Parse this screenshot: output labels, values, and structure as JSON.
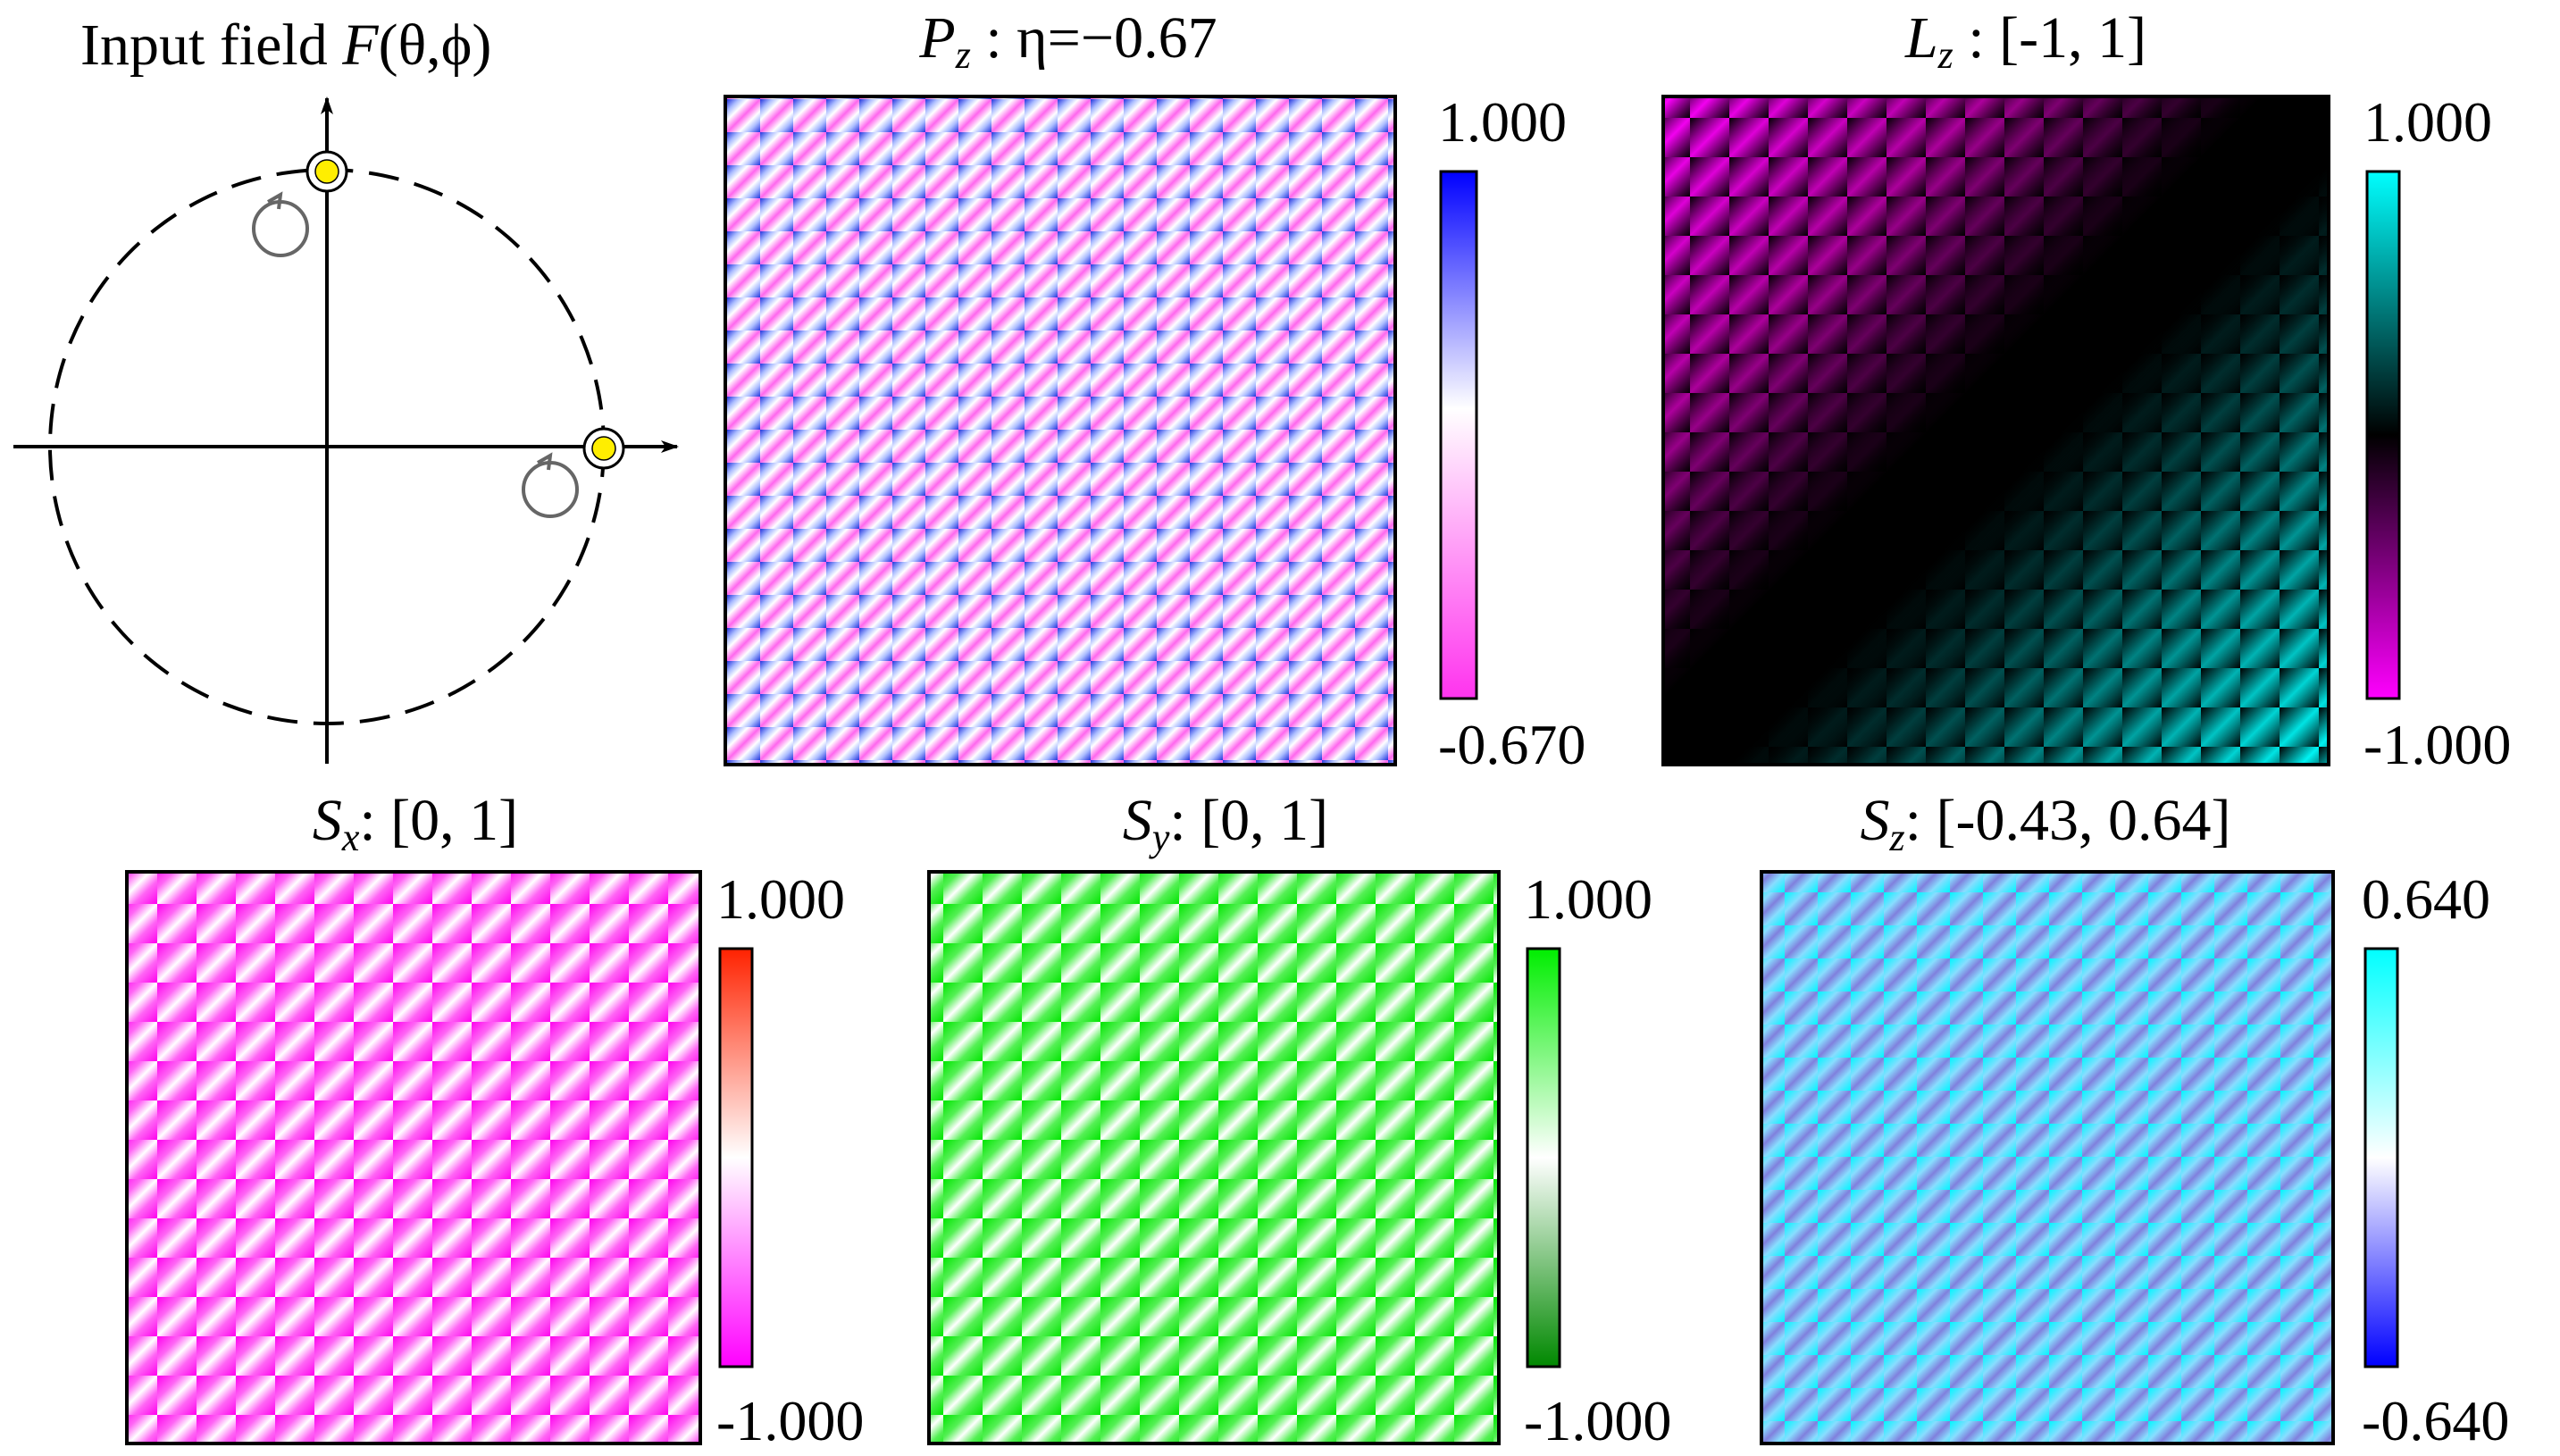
{
  "diagram": {
    "title_prefix": "Input field ",
    "title_italic": "F",
    "title_args": "(θ,ϕ)"
  },
  "colors": {
    "stripe_pink": "#ff66ee",
    "stripe_blue": "#2233dd",
    "magenta": "#ff00ff",
    "cyan": "#00ffff",
    "green": "#00ee00",
    "dark_green": "#008800",
    "red": "#ff2200",
    "navy_blue": "#0000ff",
    "marker_yellow": "#ffee00"
  },
  "panels": [
    {
      "key": "pz",
      "title_sym": "P",
      "title_sub": "z",
      "title_rest": " : η=−0.67",
      "cbar_top": "1.000",
      "cbar_bottom": "-0.670"
    },
    {
      "key": "lz",
      "title_sym": "L",
      "title_sub": "z",
      "title_rest": " :  [-1, 1]",
      "cbar_top": "1.000",
      "cbar_bottom": "-1.000"
    },
    {
      "key": "sx",
      "title_sym": "S",
      "title_sub": "x",
      "title_rest": ": [0, 1]",
      "cbar_top": "1.000",
      "cbar_bottom": "-1.000"
    },
    {
      "key": "sy",
      "title_sym": "S",
      "title_sub": "y",
      "title_rest": ": [0, 1]",
      "cbar_top": "1.000",
      "cbar_bottom": "-1.000"
    },
    {
      "key": "sz",
      "title_sym": "S",
      "title_sub": "z",
      "title_rest": ": [-0.43, 0.64]",
      "cbar_top": "0.640",
      "cbar_bottom": "-0.640"
    }
  ]
}
